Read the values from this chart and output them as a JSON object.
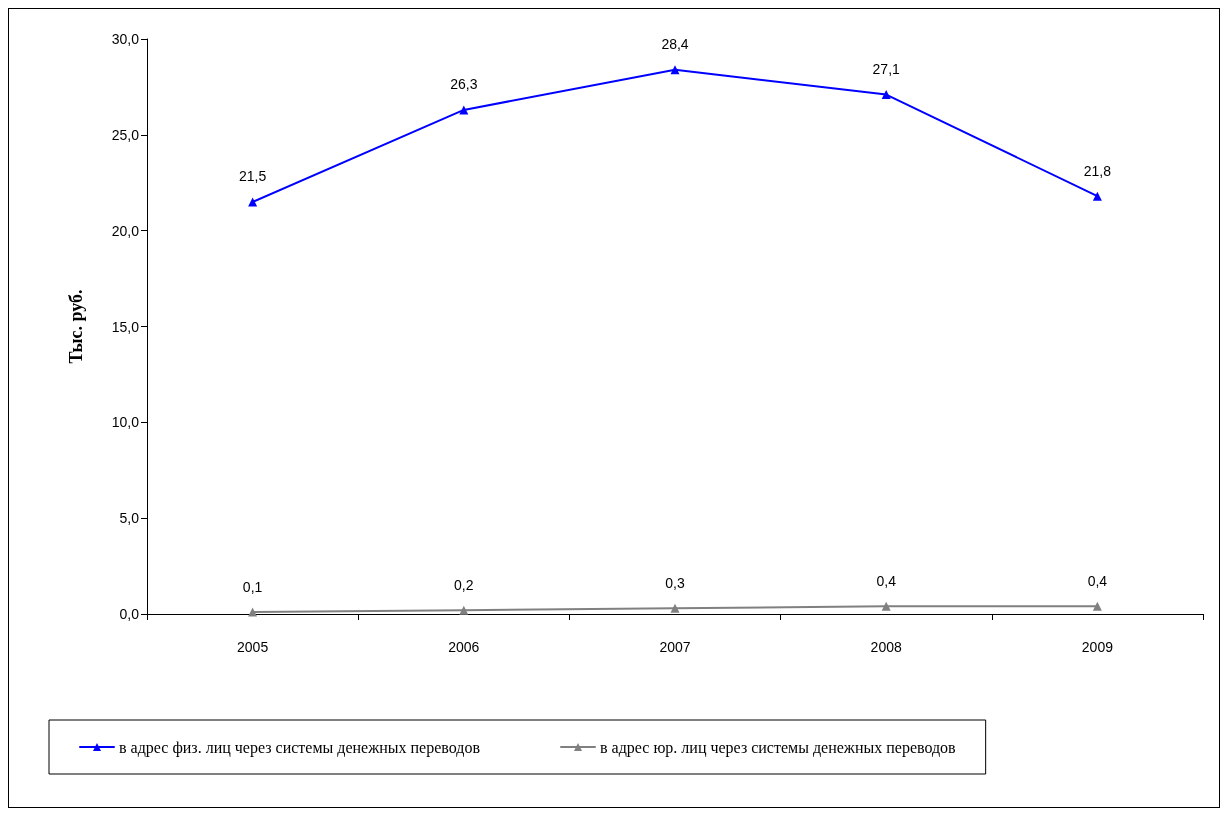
{
  "chart_data": {
    "type": "line",
    "ylabel": "Тыс. руб.",
    "categories": [
      "2005",
      "2006",
      "2007",
      "2008",
      "2009"
    ],
    "series": [
      {
        "name": "в адрес физ. лиц через системы денежных переводов",
        "color": "#0000ff",
        "values": [
          21.5,
          26.3,
          28.4,
          27.1,
          21.8
        ],
        "value_labels": [
          "21,5",
          "26,3",
          "28,4",
          "27,1",
          "21,8"
        ]
      },
      {
        "name": "в адрес юр. лиц через системы денежных переводов",
        "color": "#808080",
        "values": [
          0.1,
          0.2,
          0.3,
          0.4,
          0.4
        ],
        "value_labels": [
          "0,1",
          "0,2",
          "0,3",
          "0,4",
          "0,4"
        ]
      }
    ],
    "ylim": [
      0,
      30
    ],
    "yticks": [
      {
        "value": 0,
        "label": "0,0"
      },
      {
        "value": 5,
        "label": "5,0"
      },
      {
        "value": 10,
        "label": "10,0"
      },
      {
        "value": 15,
        "label": "15,0"
      },
      {
        "value": 20,
        "label": "20,0"
      },
      {
        "value": 25,
        "label": "25,0"
      },
      {
        "value": 30,
        "label": "30,0"
      }
    ],
    "grid": false,
    "legend": "bottom",
    "marker": "triangle",
    "line_style": "solid"
  }
}
